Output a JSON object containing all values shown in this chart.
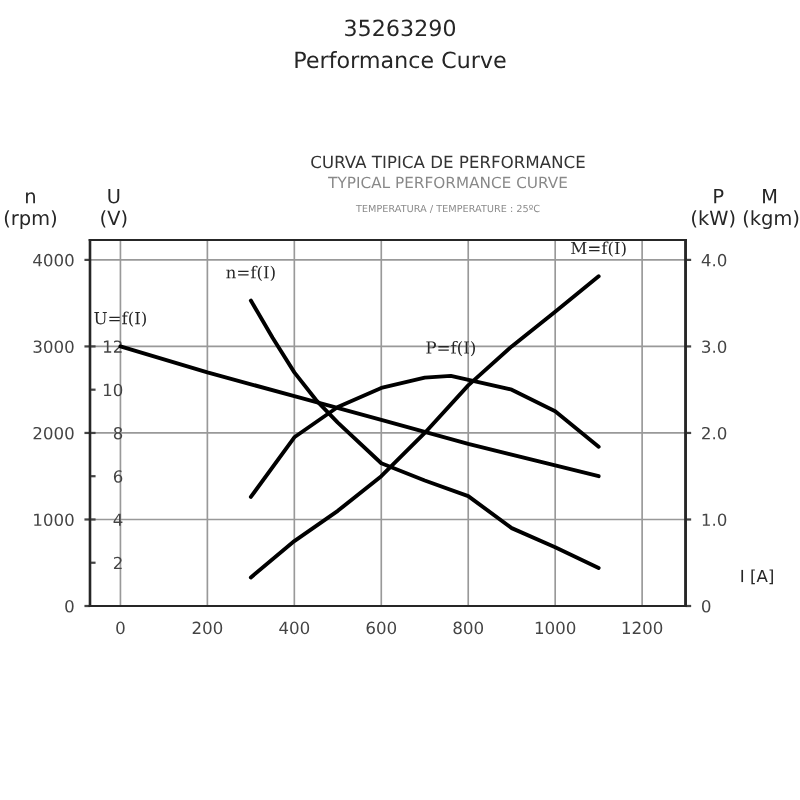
{
  "chart_data": {
    "type": "line",
    "title": "35263290",
    "subtitle": "Performance Curve",
    "annotations": [
      "CURVA TIPICA DE PERFORMANCE",
      "TYPICAL PERFORMANCE CURVE",
      "TEMPERATURA / TEMPERATURE : 25ºC"
    ],
    "xlabel": "I [A]",
    "ylabel": "n\n(rpm)",
    "y2label": "P      M\n(kW) (kgm)",
    "y3label": "U\n(V)",
    "xlim": [
      -70,
      1300
    ],
    "xticks": [
      0,
      200,
      400,
      600,
      800,
      1000,
      1200
    ],
    "ylim": [
      0,
      4230
    ],
    "yticks": [
      0,
      1000,
      2000,
      3000,
      4000
    ],
    "y2lim": [
      0,
      4.23
    ],
    "y2ticks": [
      {
        "value": 0,
        "label": "0"
      },
      {
        "value": 1,
        "label": "1.0"
      },
      {
        "value": 2,
        "label": "2.0"
      },
      {
        "value": 3,
        "label": "3.0"
      },
      {
        "value": 4,
        "label": "4.0"
      }
    ],
    "y3lim": [
      0,
      16.92
    ],
    "y3ticks": [
      2,
      4,
      6,
      8,
      10,
      12
    ],
    "grid": true,
    "legend": false,
    "marker": "none",
    "line_style": "solid",
    "series": [
      {
        "name": "U=f(I)",
        "color": "#000000",
        "axis": "y3",
        "x": [
          0,
          200,
          400,
          600,
          800,
          1000,
          1100
        ],
        "values": [
          12.0,
          10.8,
          9.7,
          8.6,
          7.5,
          6.5,
          6.0
        ]
      },
      {
        "name": "n=f(I)",
        "color": "#000000",
        "axis": "y",
        "x": [
          300,
          350,
          400,
          450,
          500,
          600,
          700,
          800,
          900,
          1000,
          1100
        ],
        "values": [
          3530,
          3100,
          2700,
          2380,
          2120,
          1650,
          1450,
          1270,
          900,
          680,
          440
        ]
      },
      {
        "name": "P=f(I)",
        "color": "#000000",
        "axis": "y2",
        "x": [
          300,
          400,
          500,
          600,
          700,
          760,
          900,
          1000,
          1100
        ],
        "values": [
          1.26,
          1.95,
          2.3,
          2.52,
          2.64,
          2.66,
          2.5,
          2.25,
          1.84
        ]
      },
      {
        "name": "M=f(I)",
        "color": "#000000",
        "axis": "y2",
        "x": [
          300,
          400,
          500,
          600,
          700,
          800,
          900,
          1000,
          1100
        ],
        "values": [
          0.33,
          0.75,
          1.1,
          1.5,
          2.0,
          2.55,
          3.0,
          3.4,
          3.81
        ]
      }
    ]
  }
}
